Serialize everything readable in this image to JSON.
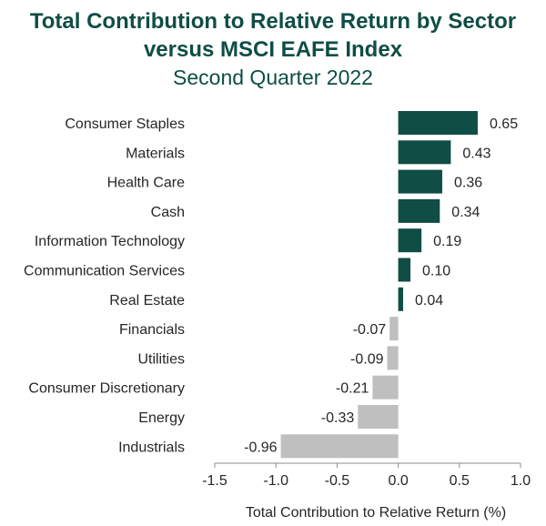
{
  "chart_data": {
    "type": "bar",
    "orientation": "horizontal",
    "title_lines": [
      "Total Contribution to Relative Return by Sector",
      "versus MSCI EAFE Index"
    ],
    "subtitle": "Second Quarter 2022",
    "xlabel": "Total Contribution to Relative Return (%)",
    "ylabel": "",
    "xlim": [
      -1.5,
      1.0
    ],
    "xticks": [
      -1.5,
      -1.0,
      -0.5,
      0.0,
      0.5,
      1.0
    ],
    "xtick_labels": [
      "-1.5",
      "-1.0",
      "-0.5",
      "0.0",
      "0.5",
      "1.0"
    ],
    "grid": false,
    "legend": "none",
    "categories": [
      "Consumer Staples",
      "Materials",
      "Health Care",
      "Cash",
      "Information Technology",
      "Communication Services",
      "Real Estate",
      "Financials",
      "Utilities",
      "Consumer Discretionary",
      "Energy",
      "Industrials"
    ],
    "values": [
      0.65,
      0.43,
      0.36,
      0.34,
      0.19,
      0.1,
      0.04,
      -0.07,
      -0.09,
      -0.21,
      -0.33,
      -0.96
    ],
    "value_labels": [
      "0.65",
      "0.43",
      "0.36",
      "0.34",
      "0.19",
      "0.10",
      "0.04",
      "-0.07",
      "-0.09",
      "-0.21",
      "-0.33",
      "-0.96"
    ],
    "colors": {
      "positive": "#0f4d45",
      "negative": "#bfbfbf",
      "title": "#0f4d45",
      "axis": "#8c8c8c"
    }
  }
}
